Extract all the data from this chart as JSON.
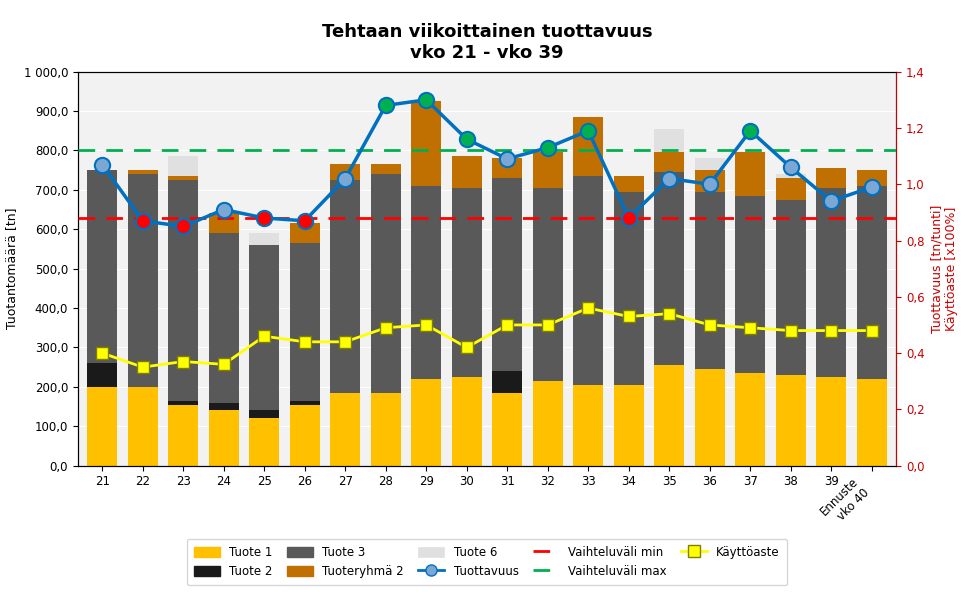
{
  "title": "Tehtaan viikoittainen tuottavuus\nvko 21 - vko 39",
  "ylabel_left": "Tuotantomäärä [tn]",
  "ylabel_right": "Tuottavuus [tn/tunti]\nKäyttöaste [x100%]",
  "weeks": [
    "21",
    "22",
    "23",
    "24",
    "25",
    "26",
    "27",
    "28",
    "29",
    "30",
    "31",
    "32",
    "33",
    "34",
    "35",
    "36",
    "37",
    "38",
    "39",
    "Ennuste\nvko 40"
  ],
  "tuote1": [
    200,
    200,
    155,
    140,
    120,
    155,
    185,
    185,
    220,
    225,
    185,
    215,
    205,
    205,
    255,
    245,
    235,
    230,
    225,
    220
  ],
  "tuote2": [
    60,
    0,
    10,
    20,
    20,
    10,
    0,
    0,
    0,
    0,
    55,
    0,
    0,
    0,
    0,
    0,
    0,
    0,
    0,
    0
  ],
  "tuote3": [
    490,
    540,
    560,
    430,
    420,
    400,
    540,
    555,
    490,
    480,
    490,
    490,
    530,
    490,
    490,
    450,
    450,
    445,
    480,
    490
  ],
  "tuoteryhmä2": [
    0,
    10,
    10,
    50,
    0,
    50,
    40,
    25,
    215,
    80,
    50,
    90,
    150,
    40,
    50,
    55,
    110,
    55,
    50,
    40
  ],
  "tuote6": [
    0,
    0,
    50,
    0,
    30,
    0,
    0,
    0,
    0,
    0,
    0,
    0,
    0,
    0,
    60,
    30,
    0,
    10,
    0,
    0
  ],
  "tuottavuus": [
    1.07,
    0.87,
    0.85,
    0.91,
    0.88,
    0.87,
    1.02,
    1.28,
    1.3,
    1.16,
    1.09,
    1.13,
    1.19,
    0.88,
    1.02,
    1.0,
    1.19,
    1.06,
    0.94,
    0.99
  ],
  "vaihteluvali_min": 0.88,
  "vaihteluvali_max": 1.12,
  "kayttoaste": [
    0.4,
    0.35,
    0.37,
    0.36,
    0.46,
    0.44,
    0.44,
    0.49,
    0.5,
    0.42,
    0.5,
    0.5,
    0.56,
    0.53,
    0.54,
    0.5,
    0.49,
    0.48,
    0.48,
    0.48
  ],
  "ylim_left": [
    0,
    1000
  ],
  "ylim_right": [
    0,
    1.4
  ],
  "yticks_left": [
    0,
    100,
    200,
    300,
    400,
    500,
    600,
    700,
    800,
    900,
    1000
  ],
  "yticks_right": [
    0.0,
    0.2,
    0.4,
    0.6,
    0.8,
    1.0,
    1.2,
    1.4
  ],
  "bar_colors": {
    "tuote1": "#FFC000",
    "tuote2": "#1A1A1A",
    "tuote3": "#595959",
    "tuoteryhmä2": "#C07000",
    "tuote6": "#E0E0E0"
  },
  "tuottavuus_line_color": "#0070C0",
  "vaihteluvali_min_color": "#FF0000",
  "vaihteluvali_max_color": "#00B050",
  "kayttoaste_color": "#FFFF00",
  "kayttoaste_edge_color": "#808000",
  "marker_high_color": "#00B050",
  "marker_low_color": "#FF0000",
  "marker_mid_color": "#7BA7D4",
  "background_color": "#F2F2F2"
}
